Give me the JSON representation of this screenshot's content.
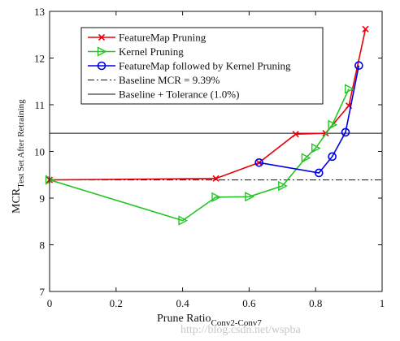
{
  "chart_data": {
    "type": "line",
    "xlabel": "Prune Ratio",
    "xlabel_sub": "Conv2-Conv7",
    "ylabel": "MCR",
    "ylabel_sub": "Test Set After Retraining",
    "xlim": [
      0,
      1
    ],
    "ylim": [
      7,
      13
    ],
    "xticks": [
      0,
      0.2,
      0.4,
      0.6,
      0.8,
      1
    ],
    "xtick_labels": [
      "0",
      "0.2",
      "0.4",
      "0.6",
      "0.8",
      "1"
    ],
    "yticks": [
      7,
      8,
      9,
      10,
      11,
      12,
      13
    ],
    "ytick_labels": [
      "7",
      "8",
      "9",
      "10",
      "11",
      "12",
      "13"
    ],
    "grid": false,
    "legend_position": "top-left",
    "series": [
      {
        "name": "FeatureMap Pruning",
        "color": "#e8000b",
        "marker": "x",
        "x": [
          0,
          0.5,
          0.63,
          0.74,
          0.83,
          0.9,
          0.95
        ],
        "y": [
          9.39,
          9.42,
          9.76,
          10.37,
          10.39,
          10.98,
          12.62
        ]
      },
      {
        "name": "Kernel Pruning",
        "color": "#22c622",
        "marker": "triangle-right",
        "x": [
          0,
          0.4,
          0.5,
          0.6,
          0.7,
          0.77,
          0.8,
          0.85,
          0.9
        ],
        "y": [
          9.39,
          8.52,
          9.02,
          9.03,
          9.26,
          9.86,
          10.07,
          10.57,
          11.34
        ]
      },
      {
        "name": "FeatureMap followed by Kernel Pruning",
        "color": "#0000e6",
        "marker": "circle",
        "x": [
          0.63,
          0.81,
          0.85,
          0.89,
          0.93
        ],
        "y": [
          9.76,
          9.54,
          9.89,
          10.41,
          11.84
        ]
      }
    ],
    "reference_lines": [
      {
        "name": "Baseline MCR = 9.39%",
        "y": 9.39,
        "style": "dashdot",
        "color": "#111111"
      },
      {
        "name": "Baseline + Tolerance (1.0%)",
        "y": 10.39,
        "style": "solid",
        "color": "#111111"
      }
    ]
  },
  "watermark": "http://blog.csdn.net/wspba"
}
